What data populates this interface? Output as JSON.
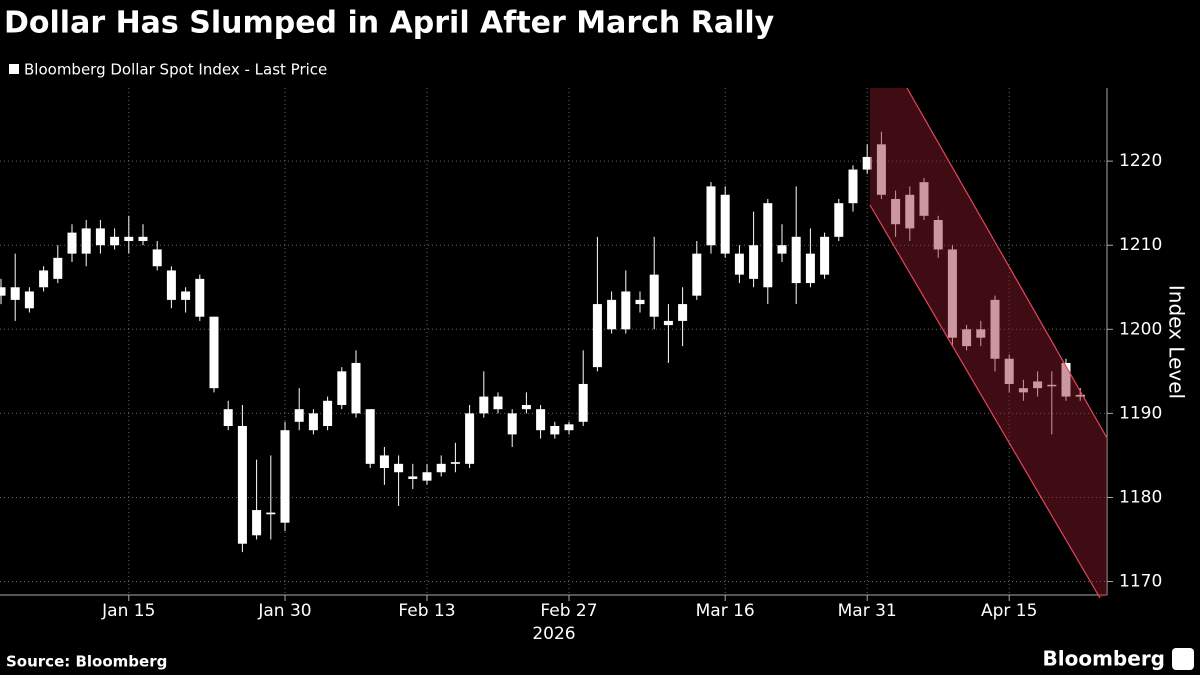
{
  "chart_data": {
    "type": "candlestick",
    "title": "Dollar Has Slumped in April After March Rally",
    "source": "Source: Bloomberg",
    "brand": "Bloomberg",
    "y_label": "Index Level",
    "x_year_label": "2026",
    "categories": [
      null,
      null,
      null,
      null,
      null,
      null,
      null,
      null,
      null,
      "Jan 15",
      null,
      null,
      null,
      null,
      null,
      null,
      null,
      null,
      null,
      null,
      "Jan 30",
      null,
      null,
      null,
      null,
      null,
      null,
      null,
      null,
      null,
      "Feb 13",
      null,
      null,
      null,
      null,
      null,
      null,
      null,
      null,
      null,
      "Feb 27",
      null,
      null,
      null,
      null,
      null,
      null,
      null,
      null,
      null,
      null,
      "Mar 16",
      null,
      null,
      null,
      null,
      null,
      null,
      null,
      null,
      null,
      "Mar 31",
      null,
      null,
      null,
      null,
      null,
      null,
      null,
      null,
      null,
      "Apr 15",
      null,
      null,
      null,
      null,
      null
    ],
    "series": [
      {
        "name": "Bloomberg Dollar Spot Index - Last Price",
        "color": "#ffffff",
        "open": [
          1204,
          1203.5,
          1202.5,
          1205,
          1206,
          1209,
          1209,
          1210,
          1211,
          1211,
          1211,
          1209.5,
          1207,
          1204.5,
          1206,
          1201.5,
          1190.5,
          1188.5,
          1175.5,
          1178,
          1177,
          1189,
          1190,
          1188.5,
          1191,
          1196,
          1190.5,
          1185,
          1184,
          1182.5,
          1183,
          1183,
          1184,
          1184,
          1190,
          1190.5,
          1190,
          1191,
          1190.5,
          1188.5,
          1188,
          1189,
          1195.5,
          1200,
          1200,
          1203.5,
          1201.5,
          1201,
          1201,
          1204,
          1210,
          1216,
          1209,
          1210,
          1215,
          1209,
          1211,
          1205.5,
          1206.5,
          1211,
          1215,
          1219,
          1222,
          1215.5,
          1212,
          1217.5,
          1213,
          1209.5,
          1200,
          1200,
          1203.5,
          1196.5,
          1193,
          1193,
          1193.3,
          1196,
          1192
        ],
        "high": [
          1206,
          1209,
          1205,
          1207.5,
          1210,
          1212.5,
          1213,
          1213,
          1212,
          1213.5,
          1212.5,
          1210.5,
          1207.5,
          1205,
          1206.5,
          1201.5,
          1191.5,
          1191,
          1184.5,
          1185,
          1189,
          1193,
          1190.5,
          1192,
          1195.5,
          1197.5,
          1190.5,
          1186,
          1185,
          1184,
          1184,
          1185,
          1186.5,
          1191,
          1195,
          1192.5,
          1190.5,
          1192.5,
          1191,
          1189,
          1189,
          1197.5,
          1211,
          1204.5,
          1207,
          1204.5,
          1211,
          1203,
          1205,
          1210.5,
          1217.5,
          1217,
          1210,
          1214,
          1215.5,
          1212.5,
          1217,
          1212,
          1211.5,
          1215.5,
          1219.5,
          1222,
          1223.5,
          1216.5,
          1217,
          1218,
          1213.5,
          1210,
          1200.5,
          1201,
          1204,
          1197,
          1194,
          1195,
          1195,
          1196.5,
          1193
        ],
        "low": [
          1203,
          1201,
          1202,
          1204.5,
          1205.5,
          1208,
          1207.5,
          1209,
          1209.5,
          1209,
          1210,
          1207,
          1202.5,
          1202,
          1201,
          1192.5,
          1188,
          1173.5,
          1175,
          1175,
          1176,
          1188,
          1187.5,
          1188,
          1190.5,
          1189.5,
          1183.5,
          1181.5,
          1179,
          1181,
          1181.5,
          1182.5,
          1183,
          1183.5,
          1189.5,
          1190,
          1186,
          1190,
          1187,
          1187,
          1187.5,
          1188.5,
          1195,
          1199.5,
          1199.5,
          1202,
          1200,
          1196,
          1198,
          1203.5,
          1209,
          1208.5,
          1205.5,
          1205,
          1203,
          1208,
          1203,
          1205,
          1206,
          1210.5,
          1214,
          1218.5,
          1215.5,
          1211,
          1210.5,
          1213,
          1208.5,
          1198,
          1197.5,
          1198,
          1195,
          1192.5,
          1191.5,
          1192,
          1187.5,
          1191.5,
          1191.5
        ],
        "close": [
          1205,
          1205,
          1204.5,
          1207,
          1208.5,
          1211.5,
          1212,
          1212,
          1210,
          1210.5,
          1210.5,
          1207.5,
          1203.5,
          1203.5,
          1201.5,
          1193,
          1188.5,
          1174.5,
          1178.5,
          1178.2,
          1188,
          1190.5,
          1188,
          1191.5,
          1195,
          1190,
          1184,
          1183.5,
          1183,
          1182.2,
          1182,
          1184,
          1184.2,
          1190,
          1192,
          1192,
          1187.5,
          1190.5,
          1188,
          1187.5,
          1188.7,
          1193.5,
          1203,
          1203.5,
          1204.5,
          1203,
          1206.5,
          1200.5,
          1203,
          1209,
          1217,
          1209,
          1206.5,
          1206,
          1205,
          1210,
          1205.5,
          1209,
          1211,
          1215,
          1219,
          1220.5,
          1216,
          1212.5,
          1216,
          1213.5,
          1209.5,
          1199,
          1198,
          1199,
          1196.5,
          1193.5,
          1192.5,
          1193.8,
          1193.4,
          1192,
          1192.2
        ]
      }
    ],
    "ylim": [
      1168.4,
      1228.7
    ],
    "yticks": [
      1170,
      1180,
      1190,
      1200,
      1210,
      1220
    ],
    "grid": true
  }
}
